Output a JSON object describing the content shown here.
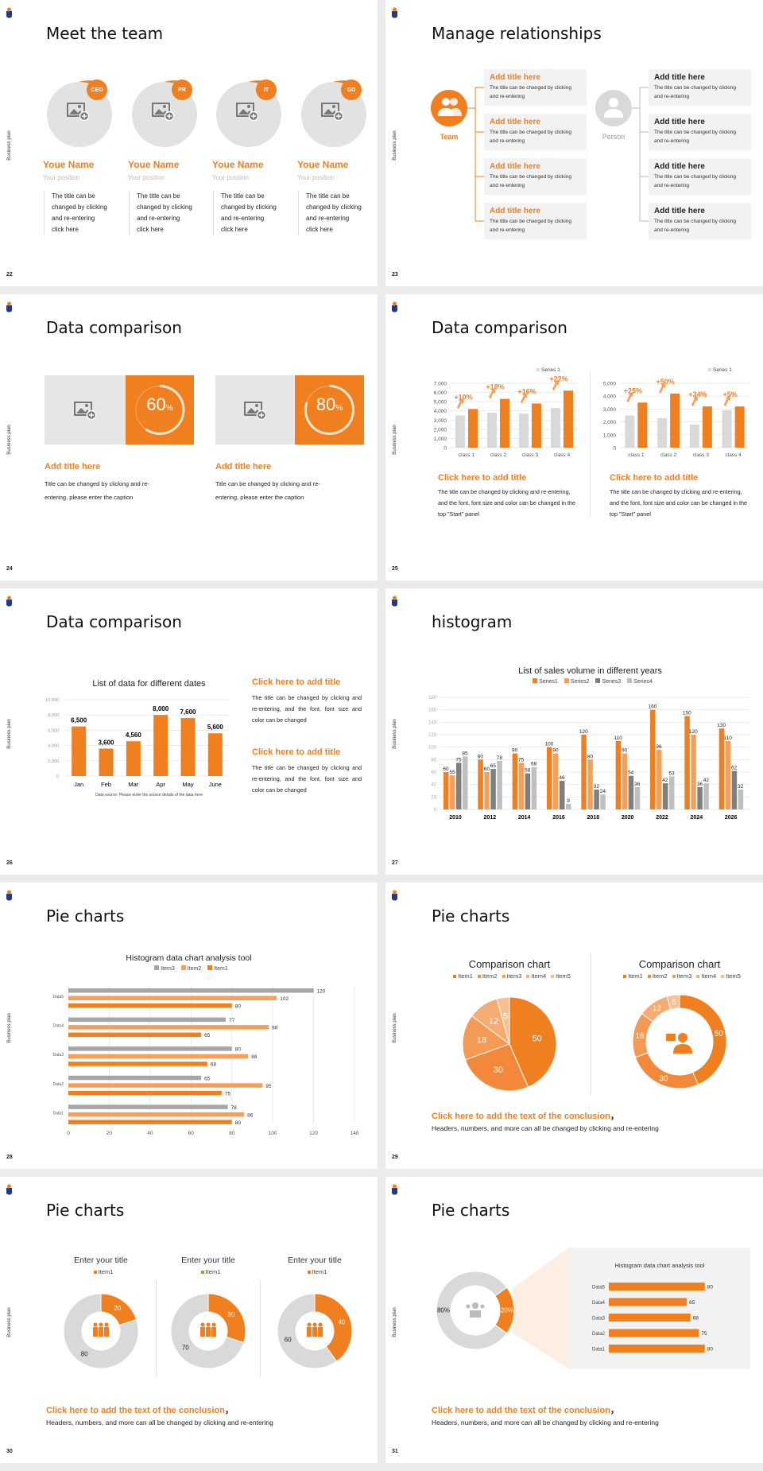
{
  "common": {
    "sidebar_text": "Business plan"
  },
  "colors": {
    "orange": "#f07f1f",
    "orange_light": "#f5a05a",
    "gray": "#d9d9d9",
    "dark_gray": "#7f7f7f",
    "mid_gray": "#a6a6a6",
    "background": "#ebebeb"
  },
  "slide22": {
    "page": "22",
    "title": "Meet the team",
    "members": [
      {
        "badge": "CEO",
        "name": "Youe Name",
        "position": "Your position",
        "desc": [
          "The title can be",
          "changed by clicking",
          "and re-entering",
          "click here"
        ]
      },
      {
        "badge": "PR",
        "name": "Youe Name",
        "position": "Your position",
        "desc": [
          "The title can be",
          "changed by clicking",
          "and re-entering",
          "click here"
        ]
      },
      {
        "badge": "IT",
        "name": "Youe Name",
        "position": "Your position",
        "desc": [
          "The title can be",
          "changed by clicking",
          "and re-entering",
          "click here"
        ]
      },
      {
        "badge": "GD",
        "name": "Youe Name",
        "position": "Your position",
        "desc": [
          "The title can be",
          "changed by clicking",
          "and re-entering",
          "click here"
        ]
      }
    ]
  },
  "slide23": {
    "page": "23",
    "title": "Manage relationships",
    "team_label": "Team",
    "person_label": "Person",
    "team_boxes": [
      {
        "title": "Add title here",
        "text": "The title can be changed by clicking and re-entering"
      },
      {
        "title": "Add title here",
        "text": "The title can be changed by clicking and re-entering"
      },
      {
        "title": "Add title here",
        "text": "The title can be changed by clicking and re-entering"
      },
      {
        "title": "Add title here",
        "text": "The title can be changed by clicking and re-entering"
      }
    ],
    "person_boxes": [
      {
        "title": "Add title here",
        "text": "The title can be changed by clicking and re-entering"
      },
      {
        "title": "Add title here",
        "text": "The title can be changed by clicking and re-entering"
      },
      {
        "title": "Add title here",
        "text": "The title can be changed by clicking and re-entering"
      },
      {
        "title": "Add title here",
        "text": "The title can be changed by clicking and re-entering"
      }
    ]
  },
  "slide24": {
    "page": "24",
    "title": "Data comparison",
    "cards": [
      {
        "percent": 60,
        "value": "60",
        "unit": "%",
        "title": "Add title here",
        "text": "Title can be changed by clicking and re-entering, please enter the caption"
      },
      {
        "percent": 80,
        "value": "80",
        "unit": "%",
        "title": "Add title here",
        "text": "Title can be changed by clicking and re-entering, please enter the caption"
      }
    ]
  },
  "slide25": {
    "page": "25",
    "title": "Data comparison",
    "blocks": [
      {
        "title": "Click here to add title",
        "text": "The title can be changed by clicking and re-entering, and the font, font size and color can be changed in the top \"Start\" panel"
      },
      {
        "title": "Click here to add title",
        "text": "The title can be changed by clicking and re-entering, and the font, font size and color can be changed in the top \"Start\" panel"
      }
    ]
  },
  "slide26": {
    "page": "26",
    "title": "Data comparison",
    "blocks": [
      {
        "title": "Click here to add title",
        "text": "The title can be changed by clicking and re-entering, and the font, font size and color can be changed"
      },
      {
        "title": "Click here to add title",
        "text": "The title can be changed by clicking and re-entering, and the font, font size and color can be changed"
      }
    ]
  },
  "slide27": {
    "page": "27",
    "title": "histogram"
  },
  "slide28": {
    "page": "28",
    "title": "Pie charts"
  },
  "slide29": {
    "page": "29",
    "title": "Pie charts",
    "conclusion": "Click here to add the text of the conclusion",
    "conclusion_comma": "，",
    "body": "Headers, numbers, and more can all be changed by clicking and re-entering"
  },
  "slide30": {
    "page": "30",
    "title": "Pie charts",
    "conclusion": "Click here to add the text of the conclusion",
    "conclusion_comma": "，",
    "body": "Headers, numbers, and more can all be changed by clicking and re-entering"
  },
  "slide31": {
    "page": "31",
    "title": "Pie charts",
    "conclusion": "Click here to add the text of the conclusion",
    "conclusion_comma": "，",
    "body": "Headers, numbers, and more can all be changed by clicking and re-entering"
  },
  "chart_data": [
    {
      "id": "s25a",
      "type": "bar",
      "categories": [
        "class 1",
        "class 2",
        "class 3",
        "class 4"
      ],
      "legend": "Series 1",
      "ylim": [
        0,
        7000
      ],
      "yticks": [
        "0",
        "1,000",
        "2,000",
        "3,000",
        "4,000",
        "5,000",
        "6,000",
        "7,000"
      ],
      "series": [
        {
          "name": "Series 1",
          "values": [
            3500,
            3800,
            3700,
            4300
          ]
        },
        {
          "values": [
            4200,
            5300,
            4800,
            6200
          ]
        }
      ],
      "annotations": [
        "+10%",
        "+18%",
        "+16%",
        "+22%"
      ],
      "grid": true,
      "legend_position": "top-right"
    },
    {
      "id": "s25b",
      "type": "bar",
      "categories": [
        "class 1",
        "class 2",
        "class 3",
        "class 4"
      ],
      "legend": "Series 1",
      "ylim": [
        0,
        5000
      ],
      "yticks": [
        "0",
        "1,000",
        "2,000",
        "3,000",
        "4,000",
        "5,000"
      ],
      "series": [
        {
          "name": "Series 1",
          "values": [
            2500,
            2300,
            1800,
            2900
          ]
        },
        {
          "values": [
            3500,
            4200,
            3200,
            3200
          ]
        }
      ],
      "annotations": [
        "+25%",
        "+50%",
        "+34%",
        "+5%"
      ],
      "grid": true,
      "legend_position": "top-right"
    },
    {
      "id": "s26",
      "type": "bar",
      "title": "List of data for different dates",
      "categories": [
        "Jan",
        "Feb",
        "Mar",
        "Apr",
        "May",
        "June"
      ],
      "values": [
        6500,
        3600,
        4560,
        8000,
        7600,
        5600
      ],
      "labels": [
        "6,500",
        "3,600",
        "4,560",
        "8,000",
        "7,600",
        "5,600"
      ],
      "ylim": [
        0,
        10000
      ],
      "yticks": [
        "0",
        "2,000",
        "4,000",
        "6,000",
        "8,000",
        "10,000"
      ],
      "note": "Data source: Please enter the source details of the data here",
      "grid": true
    },
    {
      "id": "s27",
      "type": "bar",
      "title": "List of sales volume in different years",
      "categories": [
        "2010",
        "2012",
        "2014",
        "2016",
        "2018",
        "2020",
        "2022",
        "2024",
        "2026"
      ],
      "ylim": [
        0,
        180
      ],
      "yticks": [
        "0",
        "20",
        "40",
        "60",
        "80",
        "100",
        "120",
        "140",
        "160",
        "180"
      ],
      "legend_position": "top",
      "grid": true,
      "series": [
        {
          "name": "Series1",
          "color": "#f07f1f",
          "values": [
            60,
            80,
            90,
            100,
            120,
            110,
            160,
            150,
            130
          ]
        },
        {
          "name": "Series2",
          "color": "#f5a05a",
          "values": [
            55,
            60,
            75,
            90,
            80,
            90,
            96,
            120,
            110
          ]
        },
        {
          "name": "Series3",
          "color": "#7f7f7f",
          "values": [
            75,
            65,
            58,
            46,
            32,
            54,
            42,
            36,
            62
          ]
        },
        {
          "name": "Series4",
          "color": "#bfbfbf",
          "values": [
            85,
            78,
            68,
            9,
            24,
            36,
            53,
            42,
            32
          ]
        }
      ]
    },
    {
      "id": "s28",
      "type": "bar",
      "orientation": "horizontal",
      "title": "Histogram data chart analysis tool",
      "categories": [
        "Data5",
        "Data4",
        "Data3",
        "Data2",
        "Data1"
      ],
      "xlim": [
        0,
        140
      ],
      "xticks": [
        "0",
        "20",
        "40",
        "60",
        "80",
        "100",
        "120",
        "140"
      ],
      "legend_position": "top",
      "grid": true,
      "series": [
        {
          "name": "Item3",
          "color": "#a6a6a6",
          "values": [
            120,
            77,
            80,
            65,
            78
          ]
        },
        {
          "name": "Item2",
          "color": "#f5a05a",
          "values": [
            102,
            98,
            88,
            95,
            86
          ]
        },
        {
          "name": "Item1",
          "color": "#f07f1f",
          "values": [
            80,
            65,
            68,
            75,
            80
          ]
        }
      ]
    },
    {
      "id": "s29a",
      "type": "pie",
      "title": "Comparison chart",
      "categories": [
        "Item1",
        "Item2",
        "Item3",
        "Item4",
        "Item5"
      ],
      "values": [
        50,
        30,
        18,
        12,
        5
      ],
      "colors": [
        "#f07f1f",
        "#f2893a",
        "#f39a55",
        "#f5ab72",
        "#f8c08f"
      ],
      "legend_position": "top"
    },
    {
      "id": "s29b",
      "type": "pie",
      "donut": true,
      "title": "Comparison chart",
      "categories": [
        "Item1",
        "Item2",
        "Item3",
        "Item4",
        "Item5"
      ],
      "values": [
        50,
        30,
        18,
        12,
        5
      ],
      "colors": [
        "#f07f1f",
        "#f2893a",
        "#f39a55",
        "#f5ab72",
        "#f8c08f"
      ],
      "legend_position": "top"
    },
    {
      "id": "s30a",
      "type": "pie",
      "donut": true,
      "title": "Enter your title",
      "legend": "Item1",
      "values": [
        20,
        80
      ]
    },
    {
      "id": "s30b",
      "type": "pie",
      "donut": true,
      "title": "Enter your title",
      "legend": "Item1",
      "values": [
        30,
        70
      ]
    },
    {
      "id": "s30c",
      "type": "pie",
      "donut": true,
      "title": "Enter your title",
      "legend": "Item1",
      "values": [
        40,
        60
      ]
    },
    {
      "id": "s31a",
      "type": "pie",
      "donut": true,
      "values": [
        20,
        80
      ],
      "labels": [
        "20%",
        "80%"
      ]
    },
    {
      "id": "s31b",
      "type": "bar",
      "orientation": "horizontal",
      "title": "Histogram data chart analysis tool",
      "categories": [
        "Data5",
        "Data4",
        "Data3",
        "Data2",
        "Data1"
      ],
      "values": [
        80,
        65,
        68,
        75,
        80
      ]
    }
  ]
}
